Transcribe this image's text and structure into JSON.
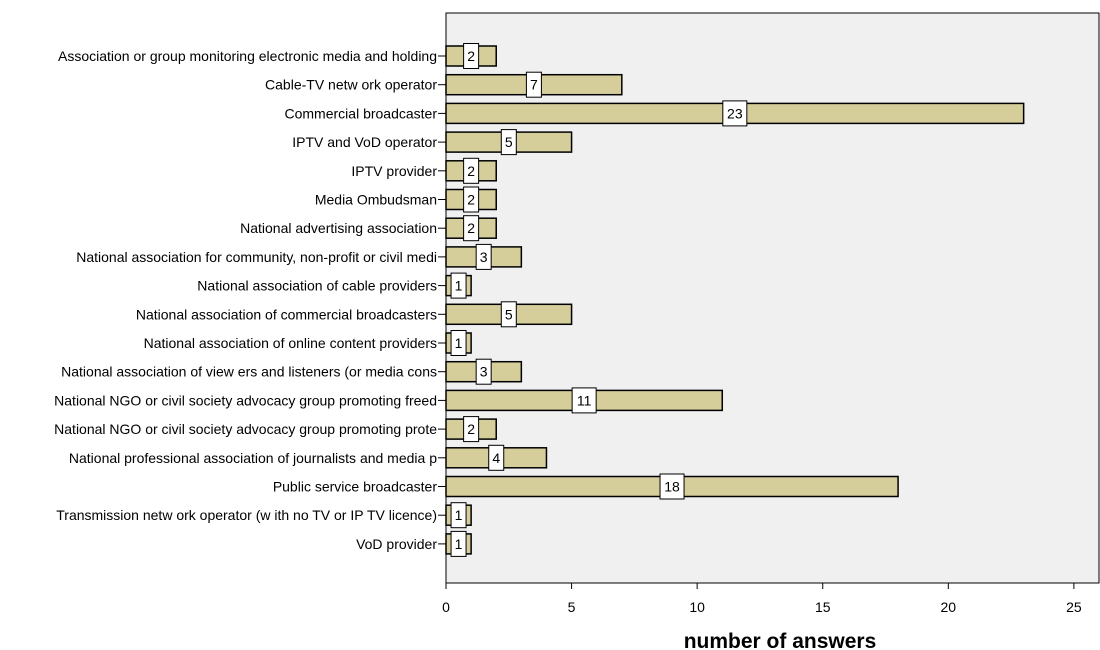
{
  "chart_data": {
    "type": "bar",
    "orientation": "horizontal",
    "title": "",
    "xlabel": "number of answers",
    "ylabel": "",
    "xlim": [
      0,
      26
    ],
    "xticks": [
      0,
      5,
      10,
      15,
      20,
      25
    ],
    "grid": false,
    "legend": "none",
    "colors": {
      "bar_fill": "#d5cd9a",
      "bar_stroke": "#000000",
      "plot_background": "#f0f0f0",
      "label_box_fill": "#ffffff"
    },
    "categories": [
      "Association or group monitoring electronic media and holding",
      "Cable-TV netw ork operator",
      "Commercial broadcaster",
      "IPTV and VoD operator",
      "IPTV provider",
      "Media Ombudsman",
      "National advertising association",
      "National association for community, non-profit or civil medi",
      "National association of cable providers",
      "National association of commercial broadcasters",
      "National association of online content providers",
      "National association of view ers and listeners (or media cons",
      "National NGO or civil society advocacy group promoting freed",
      "National NGO or civil society advocacy group promoting prote",
      "National professional association of journalists and media p",
      "Public service broadcaster",
      "Transmission netw ork operator (w ith no TV or IP TV licence)",
      "VoD provider"
    ],
    "values": [
      2,
      7,
      23,
      5,
      2,
      2,
      2,
      3,
      1,
      5,
      1,
      3,
      11,
      2,
      4,
      18,
      1,
      1
    ]
  }
}
